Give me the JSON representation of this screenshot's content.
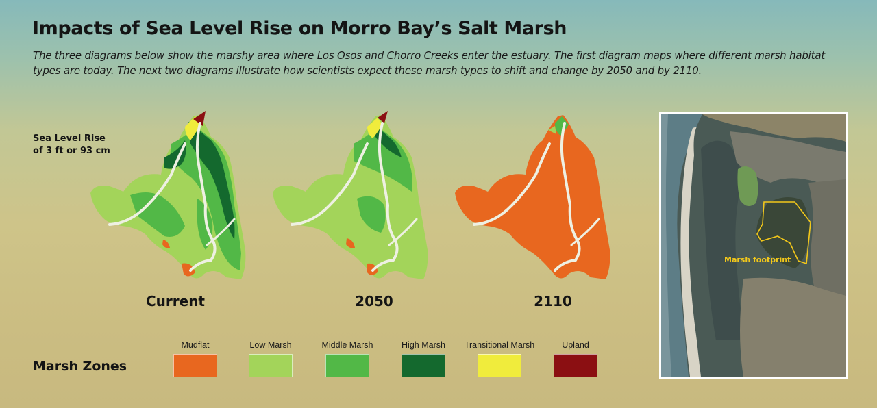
{
  "header": {
    "title": "Impacts of Sea Level Rise on Morro Bay’s Salt Marsh",
    "subtitle": "The three diagrams below show the marshy area where Los Osos and Chorro Creeks enter the estuary. The first diagram maps where different marsh habitat types are today. The next two diagrams illustrate how scientists expect these marsh types to shift and change by 2050 and by 2110."
  },
  "sea_level_note": {
    "line1": "Sea Level Rise",
    "line2": "of 3 ft or 93 cm"
  },
  "maps": [
    {
      "label": "Current"
    },
    {
      "label": "2050"
    },
    {
      "label": "2110"
    }
  ],
  "legend": {
    "title": "Marsh Zones",
    "items": [
      {
        "label": "Mudflat",
        "color": "#e8671f"
      },
      {
        "label": "Low Marsh",
        "color": "#a3d45a"
      },
      {
        "label": "Middle Marsh",
        "color": "#52b847"
      },
      {
        "label": "High Marsh",
        "color": "#14692e"
      },
      {
        "label": "Transitional Marsh",
        "color": "#f0ec3c"
      },
      {
        "label": "Upland",
        "color": "#8b0f12"
      }
    ]
  },
  "aerial_photo": {
    "footprint_label": "Marsh footprint"
  }
}
